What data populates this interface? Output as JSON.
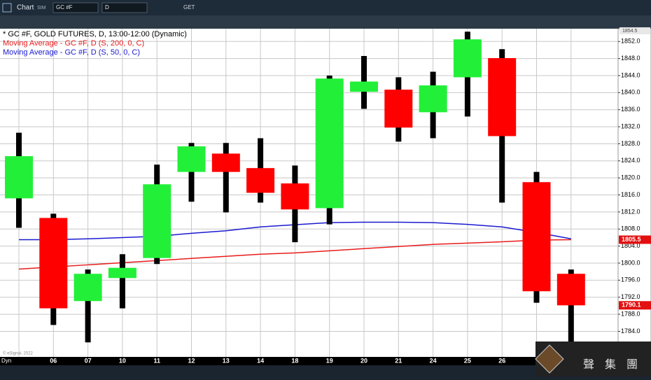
{
  "toolbar": {
    "app": "Chart",
    "mode": "SIM",
    "symbol": "GC #F",
    "interval": "D",
    "get": "GET"
  },
  "chart_data": {
    "type": "candlestick",
    "title": "* GC #F, GOLD FUTURES, D, 13:00-12:00 (Dynamic)",
    "categories": [
      null,
      "06",
      "07",
      "10",
      "11",
      "12",
      "13",
      "14",
      "18",
      "19",
      "20",
      "21",
      "24",
      "25",
      "26",
      null,
      null
    ],
    "open": [
      1815.2,
      1810.6,
      1791.1,
      1796.5,
      1801.2,
      1821.4,
      1825.7,
      1822.3,
      1818.7,
      1812.9,
      1840.2,
      1840.7,
      1835.4,
      1843.6,
      1848.1,
      1819.0,
      1797.5
    ],
    "high": [
      1830.6,
      1811.6,
      1798.5,
      1802.1,
      1823.1,
      1828.2,
      1828.2,
      1829.3,
      1822.9,
      1844.0,
      1848.6,
      1843.6,
      1844.9,
      1854.3,
      1850.2,
      1821.4,
      1798.5
    ],
    "low": [
      1808.3,
      1785.5,
      1781.4,
      1789.4,
      1799.8,
      1814.4,
      1811.9,
      1814.2,
      1804.9,
      1809.1,
      1836.2,
      1828.5,
      1829.3,
      1834.4,
      1814.2,
      1790.7,
      1779.0
    ],
    "close": [
      1825.1,
      1789.4,
      1797.5,
      1798.9,
      1818.5,
      1827.4,
      1821.4,
      1816.5,
      1812.6,
      1843.3,
      1842.6,
      1831.8,
      1841.7,
      1852.5,
      1829.8,
      1793.4,
      1790.1
    ],
    "up_color": "#22f038",
    "down_color": "#ff0000",
    "series": [
      {
        "name": "Moving Average - GC #F, D (S, 200, 0, C)",
        "color": "#e81c1c",
        "values": [
          1798.6,
          1799.1,
          1799.6,
          1800.1,
          1800.6,
          1801.1,
          1801.6,
          1802.1,
          1802.4,
          1802.9,
          1803.4,
          1803.9,
          1804.4,
          1804.7,
          1805.0,
          1805.4,
          1805.5
        ]
      },
      {
        "name": "Moving Average - GC #F, D (S, 50, 0, C)",
        "color": "#1a1ad0",
        "values": [
          1805.5,
          1805.5,
          1805.7,
          1806.0,
          1806.3,
          1807.0,
          1807.6,
          1808.5,
          1809.0,
          1809.5,
          1809.6,
          1809.6,
          1809.5,
          1809.1,
          1808.5,
          1807.2,
          1805.7
        ]
      }
    ],
    "ylim": [
      1778,
      1855
    ],
    "yticks": [
      {
        "value": 1852,
        "label": "1852.0"
      },
      {
        "value": 1848,
        "label": "1848.0"
      },
      {
        "value": 1844,
        "label": "1844.0"
      },
      {
        "value": 1840,
        "label": "1840.0"
      },
      {
        "value": 1836,
        "label": "1836.0"
      },
      {
        "value": 1832,
        "label": "1832.0"
      },
      {
        "value": 1828,
        "label": "1828.0"
      },
      {
        "value": 1824,
        "label": "1824.0"
      },
      {
        "value": 1820,
        "label": "1820.0"
      },
      {
        "value": 1816,
        "label": "1816.0"
      },
      {
        "value": 1812,
        "label": "1812.0"
      },
      {
        "value": 1808,
        "label": "1808.0"
      },
      {
        "value": 1804,
        "label": "1804.0"
      },
      {
        "value": 1800,
        "label": "1800.0"
      },
      {
        "value": 1796,
        "label": "1796.0"
      },
      {
        "value": 1792,
        "label": "1792.0"
      },
      {
        "value": 1788,
        "label": "1788.0"
      },
      {
        "value": 1784,
        "label": "1784.0"
      }
    ],
    "top_price": {
      "value": 1854.5,
      "label": "1854.5"
    },
    "price_tags": [
      {
        "value": 1805.5,
        "label": "1805.5"
      },
      {
        "value": 1790.1,
        "label": "1790.1"
      }
    ],
    "grid": true
  },
  "footer": {
    "mode": "Dyn",
    "copyright": "© eSignal, 2022"
  },
  "logo": [
    "聲",
    "集",
    "團"
  ]
}
